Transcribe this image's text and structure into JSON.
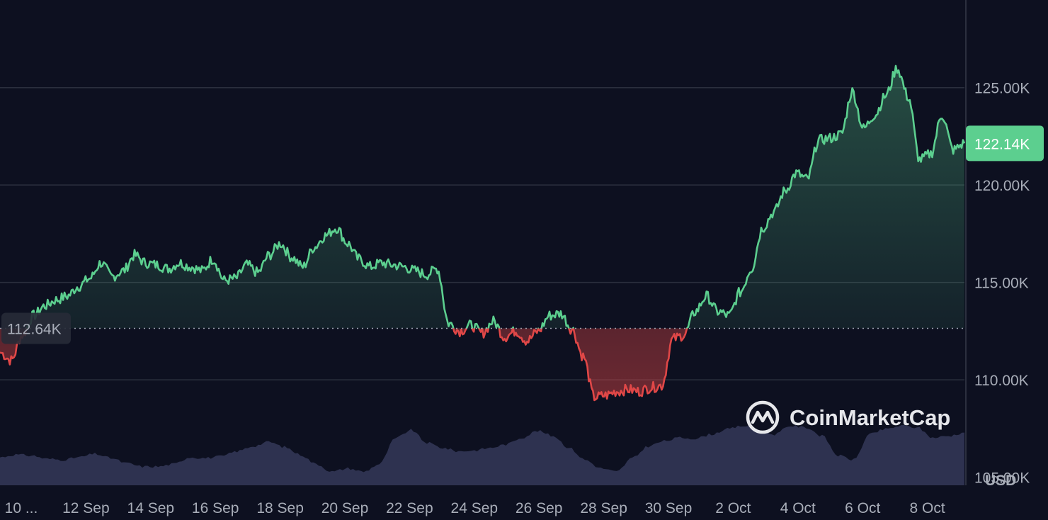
{
  "chart_data": {
    "type": "area",
    "baseline_value": 112.64,
    "baseline_label": "112.64K",
    "current_value": 122.14,
    "current_label": "122.14K",
    "y_axis": {
      "min": 102.8,
      "max": 129.5,
      "ticks": [
        {
          "value": 125,
          "label": "125.00K"
        },
        {
          "value": 120,
          "label": "120.00K"
        },
        {
          "value": 115,
          "label": "115.00K"
        },
        {
          "value": 110,
          "label": "110.00K"
        },
        {
          "value": 105,
          "label": "105.00K"
        }
      ]
    },
    "currency_label": "USD",
    "x_axis": {
      "ticks": [
        "10 ...",
        "12 Sep",
        "14 Sep",
        "16 Sep",
        "18 Sep",
        "20 Sep",
        "22 Sep",
        "24 Sep",
        "26 Sep",
        "28 Sep",
        "30 Sep",
        "2 Oct",
        "4 Oct",
        "6 Oct",
        "8 Oct"
      ]
    },
    "grid": true,
    "series": [
      {
        "values_k": [
          111.4,
          111.0,
          112.3,
          113.3,
          113.8,
          114.1,
          114.3,
          114.8,
          115.2,
          116.0,
          115.3,
          115.6,
          116.4,
          116.0,
          115.9,
          115.7,
          116.0,
          115.8,
          115.6,
          116.2,
          115.1,
          115.2,
          115.9,
          115.5,
          116.4,
          117.0,
          116.3,
          115.8,
          116.8,
          117.4,
          117.8,
          117.0,
          116.2,
          115.8,
          116.0,
          115.9,
          115.8,
          115.6,
          115.4,
          115.7,
          112.9,
          112.5,
          112.8,
          112.4,
          113.0,
          112.2,
          112.5,
          112.0,
          112.5,
          113.3,
          113.4,
          112.6,
          111.2,
          109.1,
          109.2,
          109.4,
          109.5,
          109.4,
          109.6,
          109.7,
          112.1,
          112.3,
          113.5,
          114.3,
          113.5,
          113.3,
          114.5,
          115.7,
          117.8,
          118.6,
          119.7,
          120.6,
          120.3,
          122.3,
          122.4,
          122.6,
          124.8,
          122.9,
          123.6,
          124.6,
          126.0,
          124.5,
          121.3,
          121.6,
          123.6,
          121.8,
          122.14
        ]
      },
      {
        "name": "volume",
        "values": [
          0.33,
          0.36,
          0.35,
          0.31,
          0.3,
          0.33,
          0.37,
          0.32,
          0.26,
          0.22,
          0.22,
          0.25,
          0.33,
          0.32,
          0.34,
          0.4,
          0.46,
          0.51,
          0.45,
          0.36,
          0.25,
          0.16,
          0.2,
          0.16,
          0.25,
          0.55,
          0.65,
          0.5,
          0.44,
          0.4,
          0.41,
          0.44,
          0.48,
          0.56,
          0.64,
          0.58,
          0.44,
          0.3,
          0.2,
          0.16,
          0.32,
          0.46,
          0.52,
          0.56,
          0.55,
          0.6,
          0.66,
          0.7,
          0.64,
          0.6,
          0.7,
          0.68,
          0.58,
          0.35,
          0.3,
          0.6,
          0.66,
          0.7,
          0.68,
          0.56,
          0.58,
          0.62
        ]
      }
    ]
  },
  "brand": {
    "name": "CoinMarketCap",
    "logo_icon": "coinmarketcap-logo-icon"
  },
  "colors": {
    "background": "#0d1020",
    "up": "#5ccf8f",
    "down": "#e04747",
    "grid": "#2b2f3e",
    "volume": "#2e3250",
    "badge_current": "#5ccf8f",
    "badge_baseline": "#272b37"
  }
}
